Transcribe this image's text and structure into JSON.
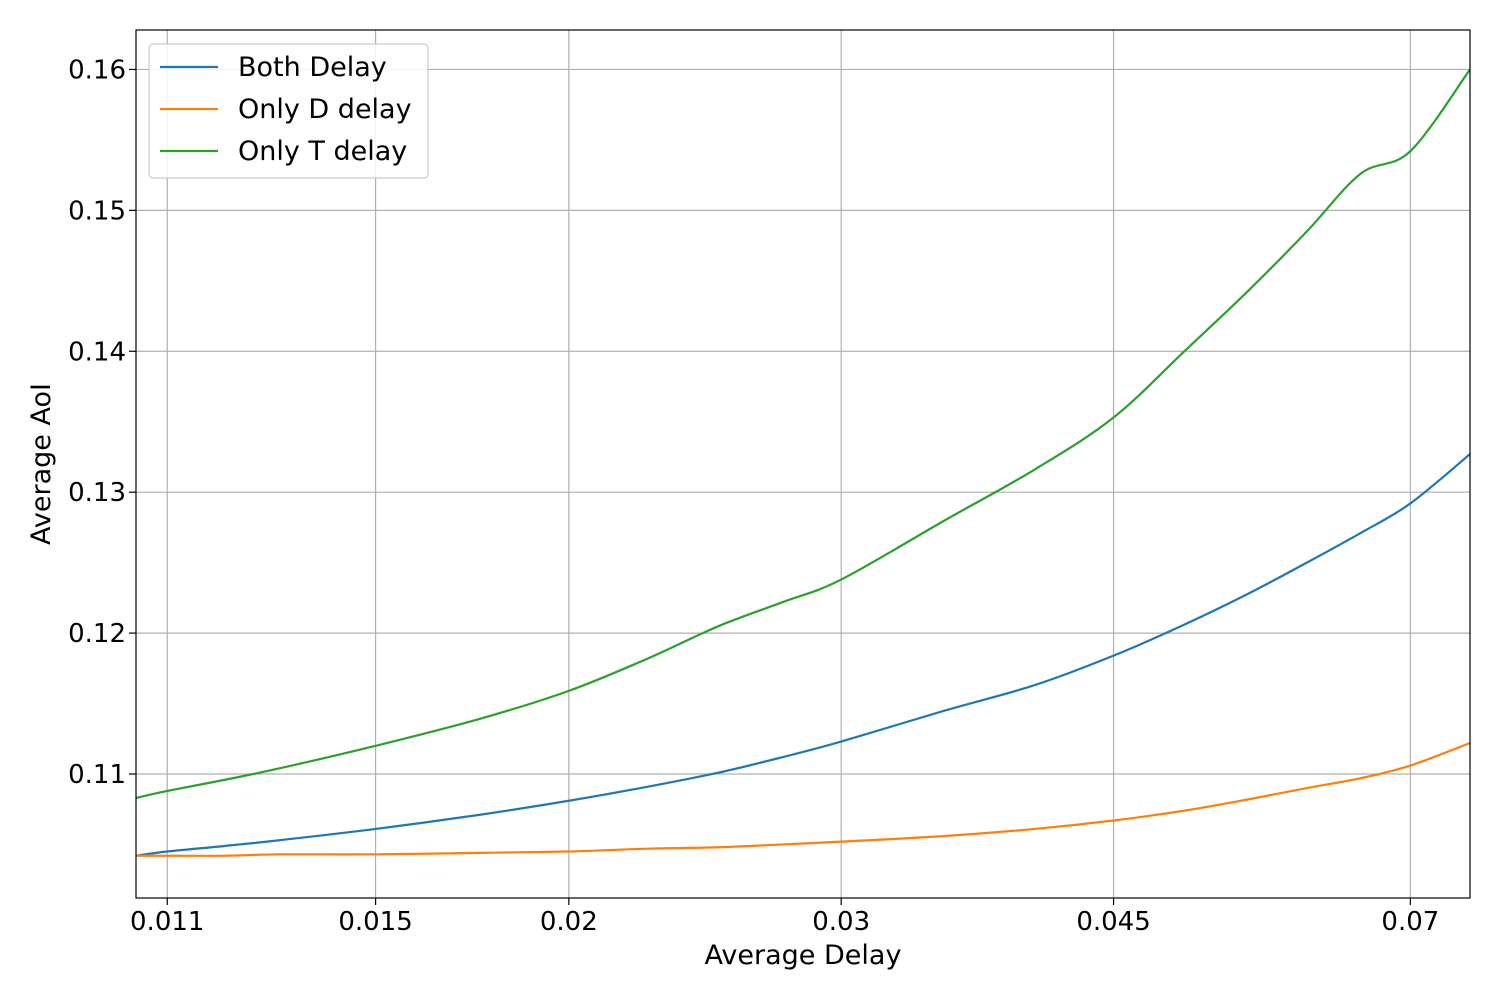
{
  "chart_data": {
    "type": "line",
    "title": "",
    "xlabel": "Average Delay",
    "ylabel": "Average AoI",
    "x_scale": "log",
    "xlim": [
      0.0105,
      0.0765
    ],
    "ylim": [
      0.1012,
      0.1628
    ],
    "grid": true,
    "legend_position": "top-left",
    "x_ticks": [
      {
        "value": 0.011,
        "label": "0.011"
      },
      {
        "value": 0.015,
        "label": "0.015"
      },
      {
        "value": 0.02,
        "label": "0.02"
      },
      {
        "value": 0.03,
        "label": "0.03"
      },
      {
        "value": 0.045,
        "label": "0.045"
      },
      {
        "value": 0.07,
        "label": "0.07"
      }
    ],
    "y_ticks": [
      {
        "value": 0.11,
        "label": "0.11"
      },
      {
        "value": 0.12,
        "label": "0.12"
      },
      {
        "value": 0.13,
        "label": "0.13"
      },
      {
        "value": 0.14,
        "label": "0.14"
      },
      {
        "value": 0.15,
        "label": "0.15"
      },
      {
        "value": 0.16,
        "label": "0.16"
      }
    ],
    "series": [
      {
        "name": "Both Delay",
        "color": "#1f77b4",
        "x": [
          0.0105,
          0.011,
          0.012,
          0.013,
          0.015,
          0.0175,
          0.02,
          0.0225,
          0.025,
          0.0275,
          0.03,
          0.035,
          0.04,
          0.045,
          0.05,
          0.055,
          0.06,
          0.065,
          0.07,
          0.0765
        ],
        "y": [
          0.1042,
          0.1045,
          0.1049,
          0.1053,
          0.1061,
          0.1071,
          0.1081,
          0.1091,
          0.1101,
          0.1112,
          0.1123,
          0.1145,
          0.1163,
          0.1184,
          0.1206,
          0.1228,
          0.125,
          0.1271,
          0.1292,
          0.1327
        ]
      },
      {
        "name": "Only D delay",
        "color": "#ff7f0e",
        "x": [
          0.0105,
          0.011,
          0.012,
          0.013,
          0.015,
          0.0175,
          0.02,
          0.0225,
          0.025,
          0.0275,
          0.03,
          0.035,
          0.04,
          0.045,
          0.05,
          0.055,
          0.06,
          0.065,
          0.07,
          0.0765
        ],
        "y": [
          0.1042,
          0.1042,
          0.1042,
          0.1043,
          0.1043,
          0.1044,
          0.1045,
          0.1047,
          0.1048,
          0.105,
          0.1052,
          0.1056,
          0.1061,
          0.1067,
          0.1074,
          0.1082,
          0.109,
          0.1097,
          0.1106,
          0.1122
        ]
      },
      {
        "name": "Only T delay",
        "color": "#2ca02c",
        "x": [
          0.0105,
          0.011,
          0.012,
          0.013,
          0.015,
          0.0175,
          0.02,
          0.0225,
          0.025,
          0.0275,
          0.03,
          0.035,
          0.04,
          0.045,
          0.05,
          0.055,
          0.06,
          0.065,
          0.07,
          0.0765
        ],
        "y": [
          0.1083,
          0.1088,
          0.1096,
          0.1104,
          0.112,
          0.1139,
          0.1159,
          0.1182,
          0.1205,
          0.1222,
          0.1238,
          0.128,
          0.1316,
          0.1353,
          0.14,
          0.1443,
          0.1485,
          0.1526,
          0.1542,
          0.16
        ]
      }
    ]
  }
}
